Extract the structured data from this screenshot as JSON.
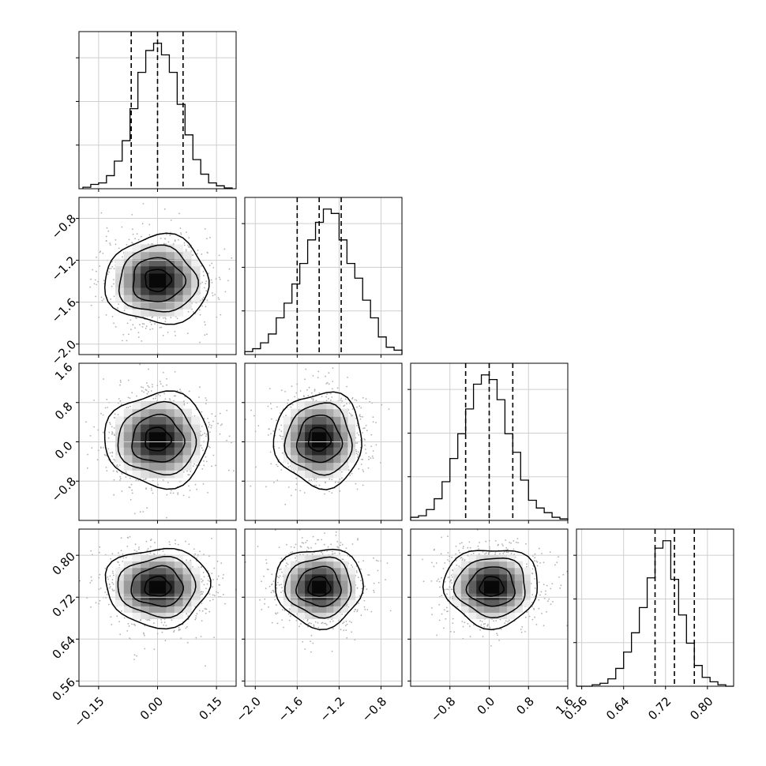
{
  "chart_data": {
    "type": "corner",
    "grid": true,
    "parameters": [
      {
        "range": [
          -0.2,
          0.2
        ],
        "ticks": [
          -0.15,
          0.0,
          0.15
        ],
        "tick_labels": [
          "−0.15",
          "0.00",
          "0.15"
        ],
        "quantiles": [
          -0.067,
          0.0,
          0.065
        ],
        "hist_start": -0.19,
        "hist_width": 0.02,
        "hist_values": [
          0.01,
          0.03,
          0.04,
          0.09,
          0.19,
          0.33,
          0.55,
          0.8,
          0.95,
          1.0,
          0.92,
          0.8,
          0.58,
          0.37,
          0.2,
          0.1,
          0.04,
          0.02,
          0.005
        ],
        "center": [
          0.0
        ]
      },
      {
        "range": [
          -2.1,
          -0.6
        ],
        "ticks": [
          -2.0,
          -1.6,
          -1.2,
          -0.8
        ],
        "tick_labels": [
          "−2.0",
          "−1.6",
          "−1.2",
          "−0.8"
        ],
        "quantiles": [
          -1.6,
          -1.39,
          -1.18
        ],
        "hist_start": -2.1,
        "hist_width": 0.075,
        "hist_values": [
          0.02,
          0.04,
          0.08,
          0.14,
          0.25,
          0.35,
          0.48,
          0.62,
          0.78,
          0.9,
          0.99,
          0.96,
          0.78,
          0.62,
          0.52,
          0.37,
          0.25,
          0.12,
          0.05,
          0.03
        ],
        "center": [
          -1.39
        ]
      },
      {
        "range": [
          -1.6,
          1.6
        ],
        "ticks": [
          -0.8,
          0.0,
          0.8,
          1.6
        ],
        "tick_labels": [
          "−0.8",
          "0.0",
          "0.8",
          "1.6"
        ],
        "quantiles": [
          -0.48,
          0.0,
          0.48
        ],
        "hist_start": -1.6,
        "hist_width": 0.16,
        "hist_values": [
          0.02,
          0.03,
          0.07,
          0.14,
          0.25,
          0.4,
          0.56,
          0.72,
          0.88,
          0.94,
          0.91,
          0.78,
          0.56,
          0.44,
          0.26,
          0.13,
          0.08,
          0.05,
          0.02,
          0.01
        ],
        "center": [
          0.05
        ]
      },
      {
        "range": [
          0.55,
          0.85
        ],
        "ticks": [
          0.56,
          0.64,
          0.72,
          0.8
        ],
        "tick_labels": [
          "0.56",
          "0.64",
          "0.72",
          "0.80"
        ],
        "quantiles": [
          0.7,
          0.737,
          0.775
        ],
        "hist_start": 0.55,
        "hist_width": 0.015,
        "hist_values": [
          0.0,
          0.0,
          0.01,
          0.02,
          0.05,
          0.12,
          0.23,
          0.36,
          0.53,
          0.73,
          0.93,
          0.98,
          0.72,
          0.48,
          0.29,
          0.14,
          0.06,
          0.03,
          0.01,
          0.0
        ],
        "center": [
          0.74
        ]
      }
    ]
  }
}
